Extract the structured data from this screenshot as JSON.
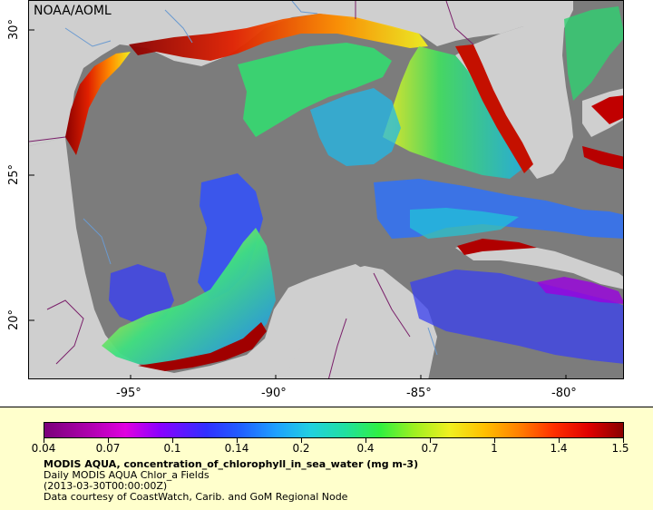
{
  "credit": "NOAA/AOML",
  "map": {
    "lat_ticks": [
      "30°",
      "25°",
      "20°"
    ],
    "lon_ticks": [
      "-95°",
      "-90°",
      "-85°",
      "-80°"
    ],
    "colors": {
      "ocean_nodata": "#7c7c7c",
      "land": "#cfcfcf",
      "border_lines": "#7a1f6a",
      "rivers": "#6a9ad0"
    }
  },
  "legend": {
    "colorbar_labels": [
      "0.04",
      "0.07",
      "0.1",
      "0.14",
      "0.2",
      "0.4",
      "0.7",
      "1",
      "1.4",
      "1.5"
    ],
    "title": "MODIS AQUA, concentration_of_chlorophyll_in_sea_water (mg m-3)",
    "line2": "Daily MODIS AQUA Chlor_a Fields",
    "line3": "(2013-03-30T00:00:00Z)",
    "line4": "Data courtesy of CoastWatch, Carib. and GoM Regional Node"
  }
}
